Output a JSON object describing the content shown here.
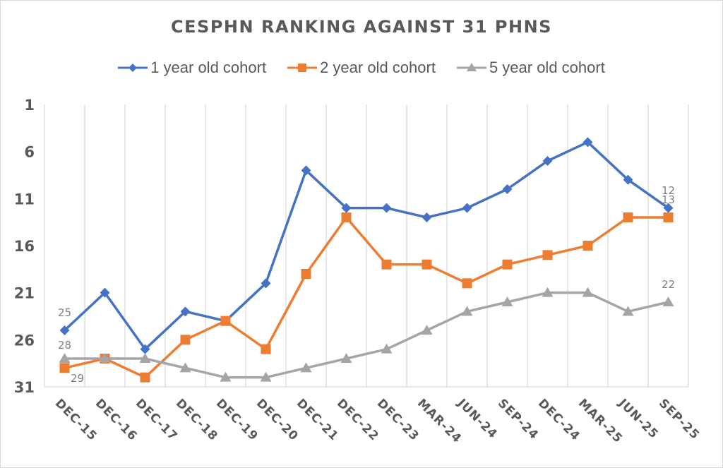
{
  "chart_data": {
    "type": "line",
    "title": "CESPHN RANKING AGAINST 31 PHNS",
    "xlabel": "",
    "ylabel": "",
    "ylim": [
      1,
      31
    ],
    "y_reversed": true,
    "y_ticks": [
      1,
      6,
      11,
      16,
      21,
      26,
      31
    ],
    "grid": "vertical",
    "legend_position": "top",
    "categories": [
      "DEC-15",
      "DEC-16",
      "DEC-17",
      "DEC-18",
      "DEC-19",
      "DEC-20",
      "DEC-21",
      "DEC-22",
      "DEC-23",
      "MAR-24",
      "JUN-24",
      "SEP-24",
      "DEC-24",
      "MAR-25",
      "JUN-25",
      "SEP-25"
    ],
    "series": [
      {
        "name": "1 year old cohort",
        "color": "#4472C4",
        "marker": "diamond",
        "values": [
          25,
          21,
          27,
          23,
          24,
          20,
          8,
          12,
          12,
          13,
          12,
          10,
          7,
          5,
          9,
          12
        ]
      },
      {
        "name": "2 year old cohort",
        "color": "#ED7D31",
        "marker": "square",
        "values": [
          29,
          28,
          30,
          26,
          24,
          27,
          19,
          13,
          18,
          18,
          20,
          18,
          17,
          16,
          13,
          13
        ]
      },
      {
        "name": "5 year old cohort",
        "color": "#A5A5A5",
        "marker": "triangle",
        "values": [
          28,
          28,
          28,
          29,
          30,
          30,
          29,
          28,
          27,
          25,
          23,
          22,
          21,
          21,
          23,
          22
        ]
      }
    ],
    "annotations": [
      {
        "text": "25",
        "series": "1 year old cohort",
        "category": "DEC-15"
      },
      {
        "text": "28",
        "series": "5 year old cohort",
        "category": "DEC-15"
      },
      {
        "text": "29",
        "series": "2 year old cohort",
        "category": "DEC-15"
      },
      {
        "text": "12",
        "series": "1 year old cohort",
        "category": "SEP-25"
      },
      {
        "text": "13",
        "series": "2 year old cohort",
        "category": "SEP-25"
      },
      {
        "text": "22",
        "series": "5 year old cohort",
        "category": "SEP-25"
      }
    ]
  },
  "colors": {
    "text": "#595959",
    "gridline": "#d9d9d9",
    "label": "#7f7f7f"
  }
}
